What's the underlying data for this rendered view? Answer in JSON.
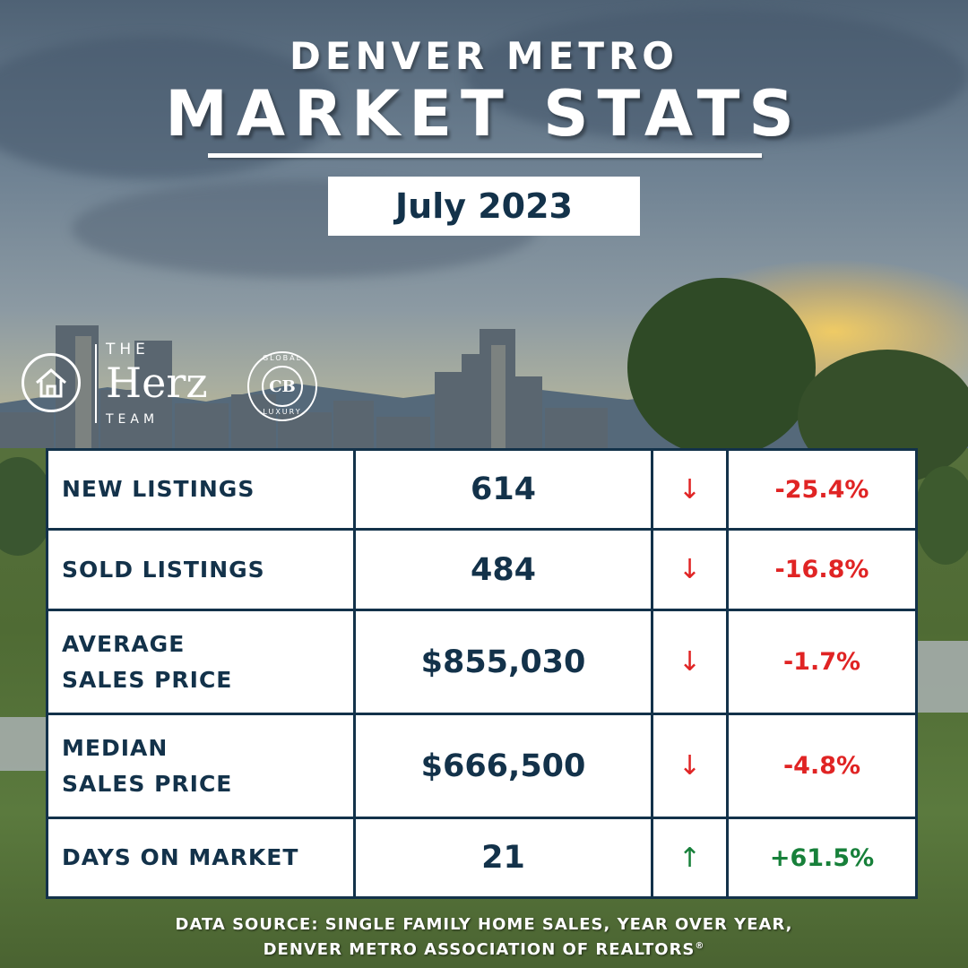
{
  "header": {
    "eyebrow": "DENVER METRO",
    "title": "MARKET STATS",
    "period": "July 2023"
  },
  "logos": {
    "herz": {
      "the": "THE",
      "name": "Herz",
      "team": "TEAM"
    },
    "cb": {
      "monogram": "CB",
      "top": "GLOBAL",
      "bottom": "LUXURY"
    }
  },
  "stats": [
    {
      "label": "NEW LISTINGS",
      "value": "614",
      "trend": "down",
      "arrow": "↓",
      "change": "-25.4%"
    },
    {
      "label": "SOLD LISTINGS",
      "value": "484",
      "trend": "down",
      "arrow": "↓",
      "change": "-16.8%"
    },
    {
      "label": "AVERAGE\nSALES PRICE",
      "value": "$855,030",
      "trend": "down",
      "arrow": "↓",
      "change": "-1.7%"
    },
    {
      "label": "MEDIAN\nSALES PRICE",
      "value": "$666,500",
      "trend": "down",
      "arrow": "↓",
      "change": "-4.8%"
    },
    {
      "label": "DAYS ON MARKET",
      "value": "21",
      "trend": "up",
      "arrow": "↑",
      "change": "+61.5%"
    }
  ],
  "footer": {
    "line1": "DATA SOURCE: SINGLE FAMILY HOME SALES, YEAR OVER YEAR,",
    "line2": "DENVER METRO ASSOCIATION OF REALTORS",
    "mark": "®"
  },
  "colors": {
    "navy": "#13324a",
    "down": "#e02424",
    "up": "#17803a"
  }
}
